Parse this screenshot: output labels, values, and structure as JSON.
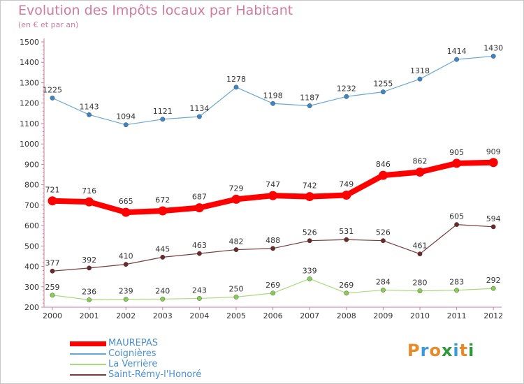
{
  "header": {
    "title": "Evolution des Impôts locaux par Habitant",
    "subtitle": "(en € et par an)"
  },
  "logo": {
    "text": "Proxiti",
    "colors": [
      "#e8892a",
      "#3a9ad9",
      "#e8892a",
      "#2e9a3a",
      "#3a9ad9",
      "#e8892a",
      "#2e9a3a"
    ]
  },
  "chart_data": {
    "type": "line",
    "title": "Evolution des Impôts locaux par Habitant",
    "subtitle": "(en € et par an)",
    "xlabel": "",
    "ylabel": "",
    "x": [
      2000,
      2001,
      2002,
      2003,
      2004,
      2005,
      2006,
      2007,
      2008,
      2009,
      2010,
      2011,
      2012
    ],
    "ylim": [
      200,
      1500
    ],
    "yticks": [
      200,
      300,
      400,
      500,
      600,
      700,
      800,
      900,
      1000,
      1100,
      1200,
      1300,
      1400,
      1500
    ],
    "grid": false,
    "legend_position": "bottom-left",
    "series": [
      {
        "name": "MAUREPAS",
        "color": "#ff0000",
        "marker": "#ff0000",
        "emphasis": true,
        "values": [
          721,
          716,
          665,
          672,
          687,
          729,
          747,
          742,
          749,
          846,
          862,
          905,
          909
        ]
      },
      {
        "name": "Coignières",
        "color": "#6aa7d8",
        "marker": "#3d85c6",
        "emphasis": false,
        "values": [
          1225,
          1143,
          1094,
          1121,
          1134,
          1278,
          1198,
          1187,
          1232,
          1255,
          1318,
          1414,
          1430
        ]
      },
      {
        "name": "La Verrière",
        "color": "#a8dc7a",
        "marker": "#88cc55",
        "emphasis": false,
        "values": [
          259,
          236,
          239,
          240,
          243,
          250,
          269,
          339,
          269,
          284,
          280,
          283,
          292
        ]
      },
      {
        "name": "Saint-Rémy-l'Honoré",
        "color": "#7a3b3b",
        "marker": "#6a2a2a",
        "emphasis": false,
        "values": [
          377,
          392,
          410,
          445,
          463,
          482,
          488,
          526,
          531,
          526,
          461,
          605,
          594
        ]
      }
    ],
    "colors": {
      "axis": "#d07a9e",
      "text": "#333333",
      "title": "#d07a9e",
      "legend_text": "#4a90d9"
    }
  }
}
